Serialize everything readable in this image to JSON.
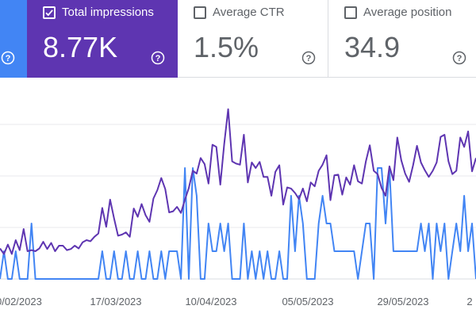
{
  "metrics": {
    "impressions": {
      "label": "Total impressions",
      "value": "8.77K",
      "checked": true,
      "color": "#5e35b1"
    },
    "ctr": {
      "label": "Average CTR",
      "value": "1.5%",
      "checked": false
    },
    "position": {
      "label": "Average position",
      "value": "34.9",
      "checked": false
    },
    "clicks_color": "#4285f4"
  },
  "icons": {
    "help": "help-circle-icon",
    "check": "checkbox-checked-icon",
    "unchecked": "checkbox-empty-icon"
  },
  "chart_data": {
    "type": "line",
    "grid": true,
    "x_tick_labels": [
      "0/02/2023",
      "17/03/2023",
      "10/04/2023",
      "05/05/2023",
      "29/05/2023",
      "2"
    ],
    "series": [
      {
        "color": "#5e35b1",
        "values": [
          5.5,
          4.5,
          6.2,
          4.5,
          7,
          5.2,
          9,
          5,
          5.2,
          5,
          5.5,
          6.7,
          5.4,
          6.5,
          5,
          6,
          6,
          5.2,
          5.4,
          6,
          5.5,
          6.6,
          7,
          6.8,
          7.6,
          8.2,
          12.8,
          9.4,
          14.3,
          10.9,
          7.8,
          8,
          8.4,
          7.6,
          12.7,
          11.2,
          13.5,
          11.5,
          10.3,
          14.5,
          16,
          18.2,
          16.2,
          12,
          12.2,
          13,
          11.9,
          14.3,
          16.4,
          19.5,
          19,
          21.8,
          20.7,
          17.2,
          24.2,
          23.8,
          17,
          24.3,
          30.6,
          21.2,
          20.8,
          20.6,
          26,
          17.4,
          21,
          20,
          21.1,
          18.4,
          18.4,
          15,
          19.3,
          20.5,
          13.4,
          16.5,
          16.3,
          15.5,
          14.4,
          16.3,
          14,
          17.4,
          16.7,
          19.5,
          20.6,
          22.3,
          14.2,
          18.7,
          18.8,
          15.2,
          18.3,
          17,
          20.5,
          17.6,
          17.2,
          21.2,
          24.1,
          19.5,
          18.9,
          16.4,
          15,
          20.3,
          17.8,
          25.5,
          21.4,
          19,
          17.5,
          20.5,
          24,
          21,
          19.6,
          18.4,
          19.5,
          21,
          25.6,
          26,
          21.2,
          18.9,
          19.5,
          25.5,
          23.8,
          26.6,
          19.4,
          21.8
        ],
        "values_note": "",
        "name": ""
      },
      {
        "color": "#4285f4",
        "values": [
          0,
          5,
          0,
          0,
          5,
          0,
          0,
          0,
          10,
          0,
          0,
          0,
          0,
          0,
          0,
          0,
          0,
          0,
          0,
          0,
          0,
          0,
          0,
          0,
          0,
          0,
          5,
          0,
          0,
          5,
          0,
          0,
          5,
          0,
          0,
          5,
          0,
          0,
          5,
          0,
          0,
          5,
          0,
          5,
          5,
          5,
          0,
          20,
          0,
          20,
          15,
          0,
          0,
          10,
          5,
          5,
          10,
          5,
          10,
          0,
          0,
          0,
          10,
          0,
          5,
          0,
          5,
          0,
          5,
          0,
          0,
          5,
          0,
          0,
          15,
          5,
          15,
          10,
          0,
          0,
          0,
          10,
          15,
          10,
          10,
          5,
          5,
          5,
          5,
          5,
          5,
          0,
          5,
          10,
          10,
          0,
          20,
          20,
          10,
          20,
          5,
          5,
          5,
          5,
          5,
          5,
          5,
          10,
          5,
          10,
          0,
          10,
          5,
          10,
          0,
          5,
          10,
          5,
          15,
          5,
          10,
          0
        ],
        "name": ""
      }
    ],
    "y_range": [
      0,
      30
    ]
  }
}
